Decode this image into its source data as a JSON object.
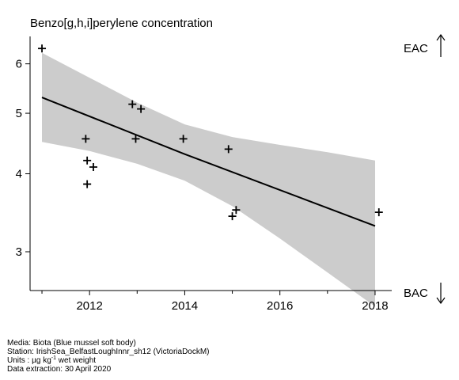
{
  "chart_data": {
    "type": "scatter",
    "title": "Benzo[g,h,i]perylene concentration",
    "xlabel": "",
    "ylabel": "",
    "y_scale": "log",
    "xlim": [
      2010.75,
      2018.35
    ],
    "ylim": [
      2.6,
      6.6
    ],
    "x_ticks": [
      2012,
      2014,
      2016,
      2018
    ],
    "x_minor_ticks": [
      2011,
      2013,
      2015,
      2017
    ],
    "y_ticks": [
      3,
      4,
      5,
      6
    ],
    "grid": false,
    "points": [
      {
        "x": 2011.0,
        "y": 6.35
      },
      {
        "x": 2011.92,
        "y": 4.55
      },
      {
        "x": 2011.95,
        "y": 4.2
      },
      {
        "x": 2011.95,
        "y": 3.85
      },
      {
        "x": 2012.08,
        "y": 4.1
      },
      {
        "x": 2012.9,
        "y": 5.17
      },
      {
        "x": 2012.97,
        "y": 4.55
      },
      {
        "x": 2013.08,
        "y": 5.08
      },
      {
        "x": 2013.97,
        "y": 4.55
      },
      {
        "x": 2014.92,
        "y": 4.38
      },
      {
        "x": 2015.0,
        "y": 3.42
      },
      {
        "x": 2015.08,
        "y": 3.5
      },
      {
        "x": 2018.08,
        "y": 3.47
      }
    ],
    "trend": {
      "x": [
        2011.0,
        2014.0,
        2018.0
      ],
      "y": [
        5.3,
        4.3,
        3.3
      ]
    },
    "confidence_band": {
      "x": [
        2011.0,
        2012.0,
        2013.0,
        2014.0,
        2015.0,
        2016.0,
        2017.0,
        2018.0
      ],
      "lower": [
        4.5,
        4.35,
        4.15,
        3.9,
        3.55,
        3.15,
        2.78,
        2.45
      ],
      "upper": [
        6.25,
        5.7,
        5.2,
        4.8,
        4.58,
        4.45,
        4.33,
        4.2
      ]
    },
    "threshold_labels": [
      {
        "label": "EAC",
        "arrow": "up"
      },
      {
        "label": "BAC",
        "arrow": "down"
      }
    ]
  },
  "footer": {
    "media": "Media: Biota (Blue mussel soft body)",
    "station": "Station: IrishSea_BelfastLoughInnr_sh12 (VictoriaDockM)",
    "units_prefix": "Units : µg kg",
    "units_exp": "-1",
    "units_suffix": " wet weight",
    "extraction": "Data extraction: 30 April 2020"
  }
}
